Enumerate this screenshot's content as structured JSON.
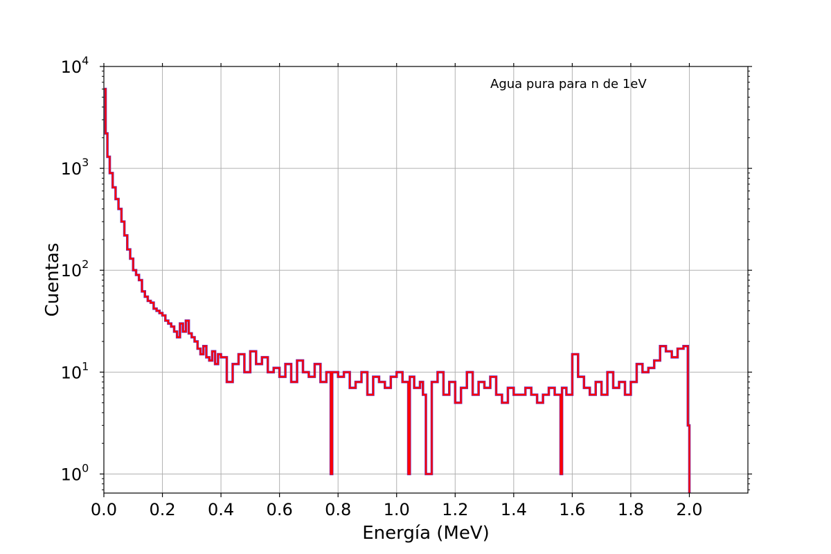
{
  "chart_data": {
    "type": "line",
    "title": "",
    "xlabel": "Energía (MeV)",
    "ylabel": "Cuentas",
    "xlim": [
      0.0,
      2.2
    ],
    "ylim": [
      0.65,
      10000
    ],
    "yscale": "log",
    "grid": true,
    "annotation": "Agua pura para n de 1eV",
    "x_ticks": [
      0.0,
      0.2,
      0.4,
      0.6,
      0.8,
      1.0,
      1.2,
      1.4,
      1.6,
      1.8,
      2.0
    ],
    "x_tick_labels": [
      "0.0",
      "0.2",
      "0.4",
      "0.6",
      "0.8",
      "1.0",
      "1.2",
      "1.4",
      "1.6",
      "1.8",
      "2.0"
    ],
    "y_ticks": [
      1,
      10,
      100,
      1000,
      10000
    ],
    "y_tick_labels": [
      {
        "base": "10",
        "exp": "0"
      },
      {
        "base": "10",
        "exp": "1"
      },
      {
        "base": "10",
        "exp": "2"
      },
      {
        "base": "10",
        "exp": "3"
      },
      {
        "base": "10",
        "exp": "4"
      }
    ],
    "series": [
      {
        "color": "#ff0000",
        "edge_color": "#6a2fbf",
        "x": [
          0.002,
          0.006,
          0.012,
          0.02,
          0.03,
          0.04,
          0.05,
          0.06,
          0.07,
          0.08,
          0.09,
          0.1,
          0.11,
          0.12,
          0.13,
          0.14,
          0.15,
          0.16,
          0.17,
          0.18,
          0.19,
          0.2,
          0.21,
          0.22,
          0.23,
          0.24,
          0.25,
          0.26,
          0.27,
          0.28,
          0.29,
          0.3,
          0.31,
          0.32,
          0.33,
          0.34,
          0.35,
          0.36,
          0.37,
          0.38,
          0.39,
          0.4,
          0.42,
          0.44,
          0.46,
          0.48,
          0.5,
          0.52,
          0.54,
          0.56,
          0.58,
          0.6,
          0.62,
          0.64,
          0.66,
          0.68,
          0.7,
          0.72,
          0.74,
          0.76,
          0.775,
          0.78,
          0.8,
          0.82,
          0.84,
          0.86,
          0.88,
          0.9,
          0.92,
          0.94,
          0.96,
          0.98,
          1.0,
          1.02,
          1.04,
          1.045,
          1.06,
          1.08,
          1.09,
          1.1,
          1.12,
          1.14,
          1.16,
          1.18,
          1.2,
          1.22,
          1.24,
          1.26,
          1.28,
          1.3,
          1.32,
          1.34,
          1.36,
          1.38,
          1.4,
          1.42,
          1.44,
          1.46,
          1.48,
          1.5,
          1.52,
          1.54,
          1.56,
          1.565,
          1.58,
          1.6,
          1.62,
          1.64,
          1.66,
          1.68,
          1.7,
          1.72,
          1.74,
          1.76,
          1.78,
          1.8,
          1.82,
          1.84,
          1.86,
          1.88,
          1.9,
          1.92,
          1.94,
          1.96,
          1.98,
          1.995,
          2.0
        ],
        "y": [
          6000,
          2200,
          1300,
          900,
          650,
          500,
          400,
          300,
          220,
          160,
          130,
          100,
          90,
          80,
          62,
          55,
          50,
          48,
          42,
          40,
          38,
          36,
          32,
          30,
          28,
          25,
          22,
          30,
          25,
          32,
          24,
          22,
          20,
          17,
          15,
          18,
          14,
          13,
          16,
          12,
          15,
          14,
          8,
          12,
          15,
          10,
          16,
          12,
          14,
          10,
          11,
          9,
          12,
          8,
          13,
          10,
          9,
          12,
          8,
          10,
          1,
          10,
          9,
          10,
          7,
          8,
          10,
          6,
          9,
          8,
          7,
          9,
          10,
          8,
          1,
          9,
          7,
          8,
          6,
          1,
          8,
          10,
          6,
          8,
          5,
          7,
          10,
          6,
          8,
          7,
          9,
          6,
          5,
          7,
          6,
          6,
          7,
          6,
          5,
          6,
          7,
          6,
          1,
          7,
          6,
          15,
          9,
          7,
          6,
          8,
          6,
          10,
          7,
          8,
          6,
          8,
          12,
          10,
          11,
          13,
          18,
          16,
          14,
          17,
          18,
          3,
          0.6
        ]
      }
    ]
  }
}
